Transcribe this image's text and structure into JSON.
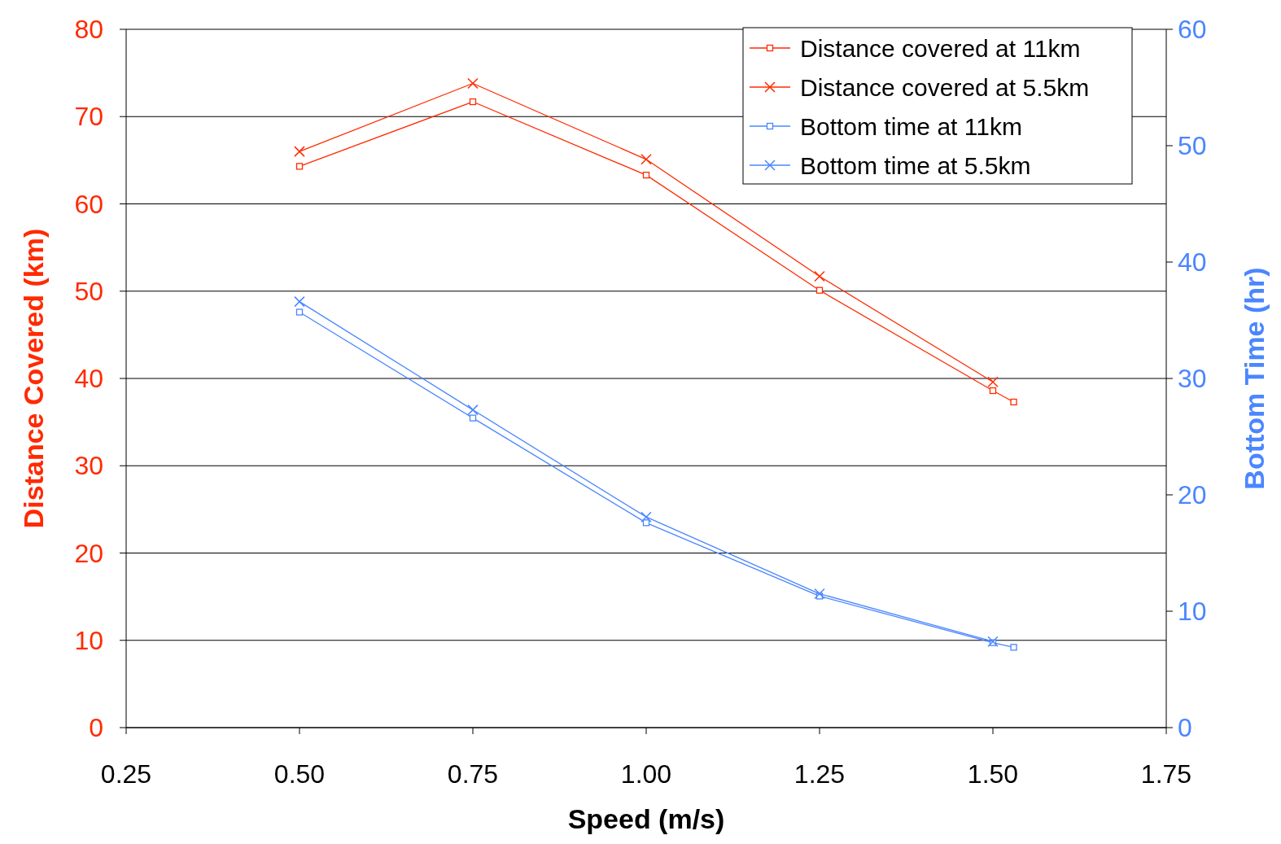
{
  "chart_data": {
    "type": "line",
    "xlabel": "Speed (m/s)",
    "ylabel": "Distance Covered (km)",
    "y2label": "Bottom Time (hr)",
    "xlim": [
      0.25,
      1.75
    ],
    "xticks": [
      {
        "value": 0.25,
        "label": "0.25"
      },
      {
        "value": 0.5,
        "label": "0.50"
      },
      {
        "value": 0.75,
        "label": "0.75"
      },
      {
        "value": 1,
        "label": "1.00"
      },
      {
        "value": 1.25,
        "label": "1.25"
      },
      {
        "value": 1.5,
        "label": "1.50"
      },
      {
        "value": 1.75,
        "label": "1.75"
      }
    ],
    "ylim": [
      0,
      80
    ],
    "yticks": [
      0,
      10,
      20,
      30,
      40,
      50,
      60,
      70,
      80
    ],
    "y2lim": [
      0,
      60
    ],
    "y2ticks": [
      0,
      10,
      20,
      30,
      40,
      50,
      60
    ],
    "grid": "y",
    "legend": "top right",
    "series": [
      {
        "name": "Distance covered at 11km",
        "color": "#ff2a00",
        "marker": "square",
        "x": [
          0.5,
          0.75,
          1.0,
          1.25,
          1.5,
          1.53
        ],
        "values": [
          64.3,
          71.7,
          63.3,
          50.1,
          38.6,
          37.3
        ]
      },
      {
        "name": "Distance covered at 5.5km",
        "color": "#ff2a00",
        "marker": "cross",
        "x": [
          0.5,
          0.75,
          1.0,
          1.25,
          1.5
        ],
        "values": [
          66.0,
          73.8,
          65.1,
          51.7,
          39.6
        ]
      },
      {
        "name": "Bottom time at 11km",
        "color": "#4a86ff",
        "marker": "square",
        "axis": "y2",
        "x": [
          0.5,
          0.75,
          1.0,
          1.25,
          1.5,
          1.53
        ],
        "values": [
          35.7,
          26.6,
          17.6,
          11.3,
          7.3,
          6.9
        ]
      },
      {
        "name": "Bottom time at 5.5km",
        "color": "#4a86ff",
        "marker": "cross",
        "axis": "y2",
        "x": [
          0.5,
          0.75,
          1.0,
          1.25,
          1.5
        ],
        "values": [
          36.6,
          27.3,
          18.1,
          11.5,
          7.4
        ]
      }
    ]
  }
}
